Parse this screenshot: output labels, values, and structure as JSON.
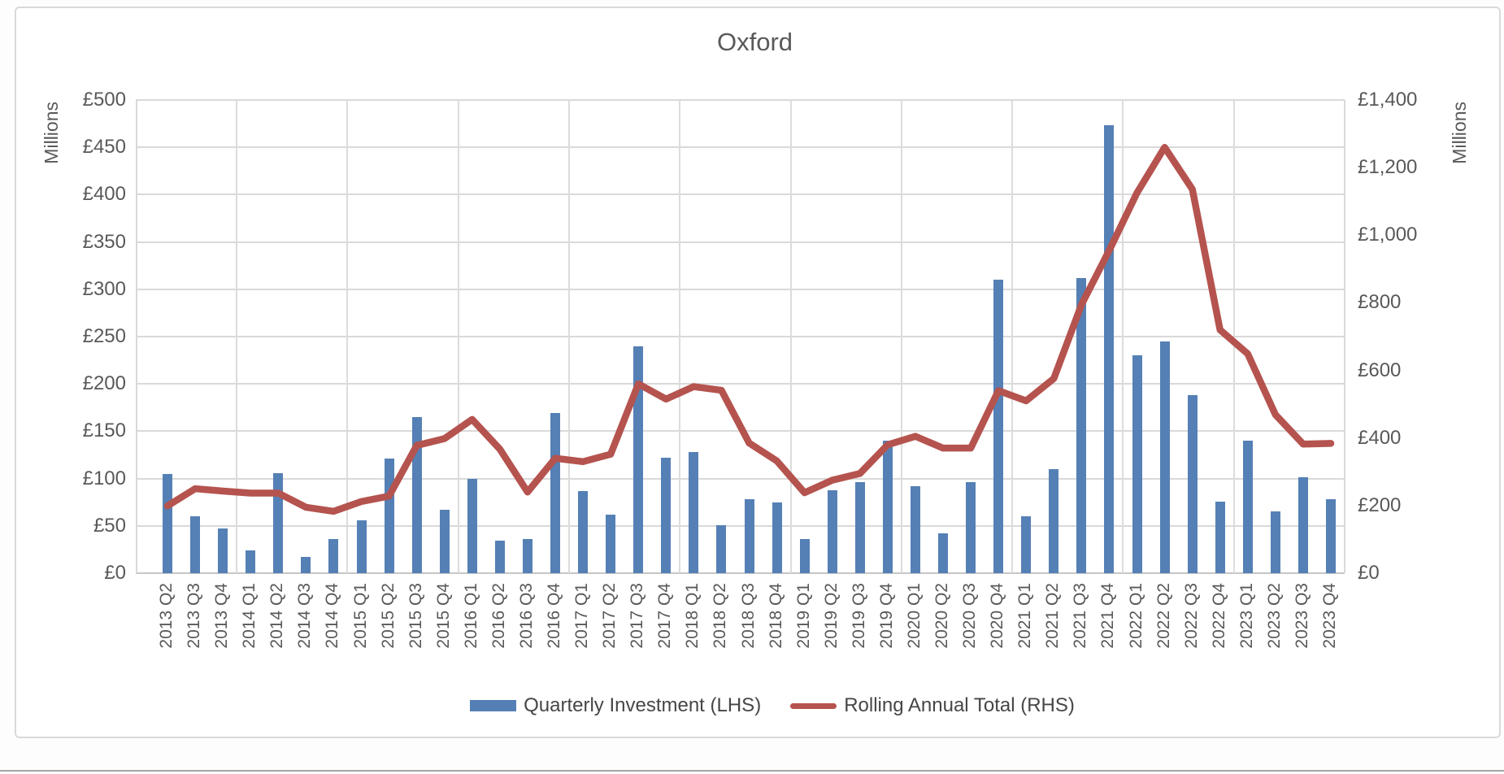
{
  "title": "Oxford",
  "legend": {
    "bar_label": "Quarterly Investment (LHS)",
    "line_label": "Rolling Annual Total (RHS)"
  },
  "colors": {
    "bar": "#5580B5",
    "line": "#B5534E",
    "grid": "#d9d9d9",
    "axis_text": "#595959"
  },
  "axes": {
    "left_title": "Millions",
    "right_title": "Millions",
    "left_ticks": [
      "£0",
      "£50",
      "£100",
      "£150",
      "£200",
      "£250",
      "£300",
      "£350",
      "£400",
      "£450",
      "£500"
    ],
    "right_ticks": [
      "£0",
      "£200",
      "£400",
      "£600",
      "£800",
      "£1,000",
      "£1,200",
      "£1,400"
    ]
  },
  "chart_data": {
    "type": "combo",
    "title": "Oxford",
    "categories": [
      "2013 Q2",
      "2013 Q3",
      "2013 Q4",
      "2014 Q1",
      "2014 Q2",
      "2014 Q3",
      "2014 Q4",
      "2015 Q1",
      "2015 Q2",
      "2015 Q3",
      "2015 Q4",
      "2016 Q1",
      "2016 Q2",
      "2016 Q3",
      "2016 Q4",
      "2017 Q1",
      "2017 Q2",
      "2017 Q3",
      "2017 Q4",
      "2018 Q1",
      "2018 Q2",
      "2018 Q3",
      "2018 Q4",
      "2019 Q1",
      "2019 Q2",
      "2019 Q3",
      "2019 Q4",
      "2020 Q1",
      "2020 Q2",
      "2020 Q3",
      "2020 Q4",
      "2021 Q1",
      "2021 Q2",
      "2021 Q3",
      "2021 Q4",
      "2022 Q1",
      "2022 Q2",
      "2022 Q3",
      "2022 Q4",
      "2023 Q1",
      "2023 Q2",
      "2023 Q3",
      "2023 Q4"
    ],
    "series": [
      {
        "name": "Quarterly Investment (LHS)",
        "type": "bar",
        "axis": "left",
        "values": [
          105,
          60,
          47,
          24,
          106,
          17,
          36,
          56,
          121,
          165,
          67,
          100,
          34,
          36,
          169,
          87,
          62,
          240,
          122,
          128,
          51,
          78,
          75,
          36,
          88,
          96,
          140,
          92,
          42,
          96,
          310,
          60,
          110,
          312,
          473,
          230,
          245,
          188,
          76,
          140,
          65,
          101,
          78
        ]
      },
      {
        "name": "Rolling Annual Total (RHS)",
        "type": "line",
        "axis": "right",
        "values": [
          199,
          250,
          243,
          237,
          237,
          195,
          183,
          212,
          228,
          378,
          398,
          455,
          367,
          240,
          340,
          330,
          352,
          560,
          515,
          552,
          541,
          385,
          332,
          238,
          275,
          295,
          380,
          405,
          370,
          370,
          540,
          510,
          576,
          795,
          955,
          1125,
          1260,
          1136,
          720,
          649,
          469,
          382,
          384
        ]
      }
    ],
    "left_axis": {
      "label": "Millions",
      "min": 0,
      "max": 500,
      "step": 50,
      "tick_format": "£{n}"
    },
    "right_axis": {
      "label": "Millions",
      "min": 0,
      "max": 1400,
      "step": 200,
      "tick_format": "£{n,}"
    },
    "grid": true,
    "vertical_gridlines": "year-boundaries",
    "legend_position": "bottom"
  }
}
